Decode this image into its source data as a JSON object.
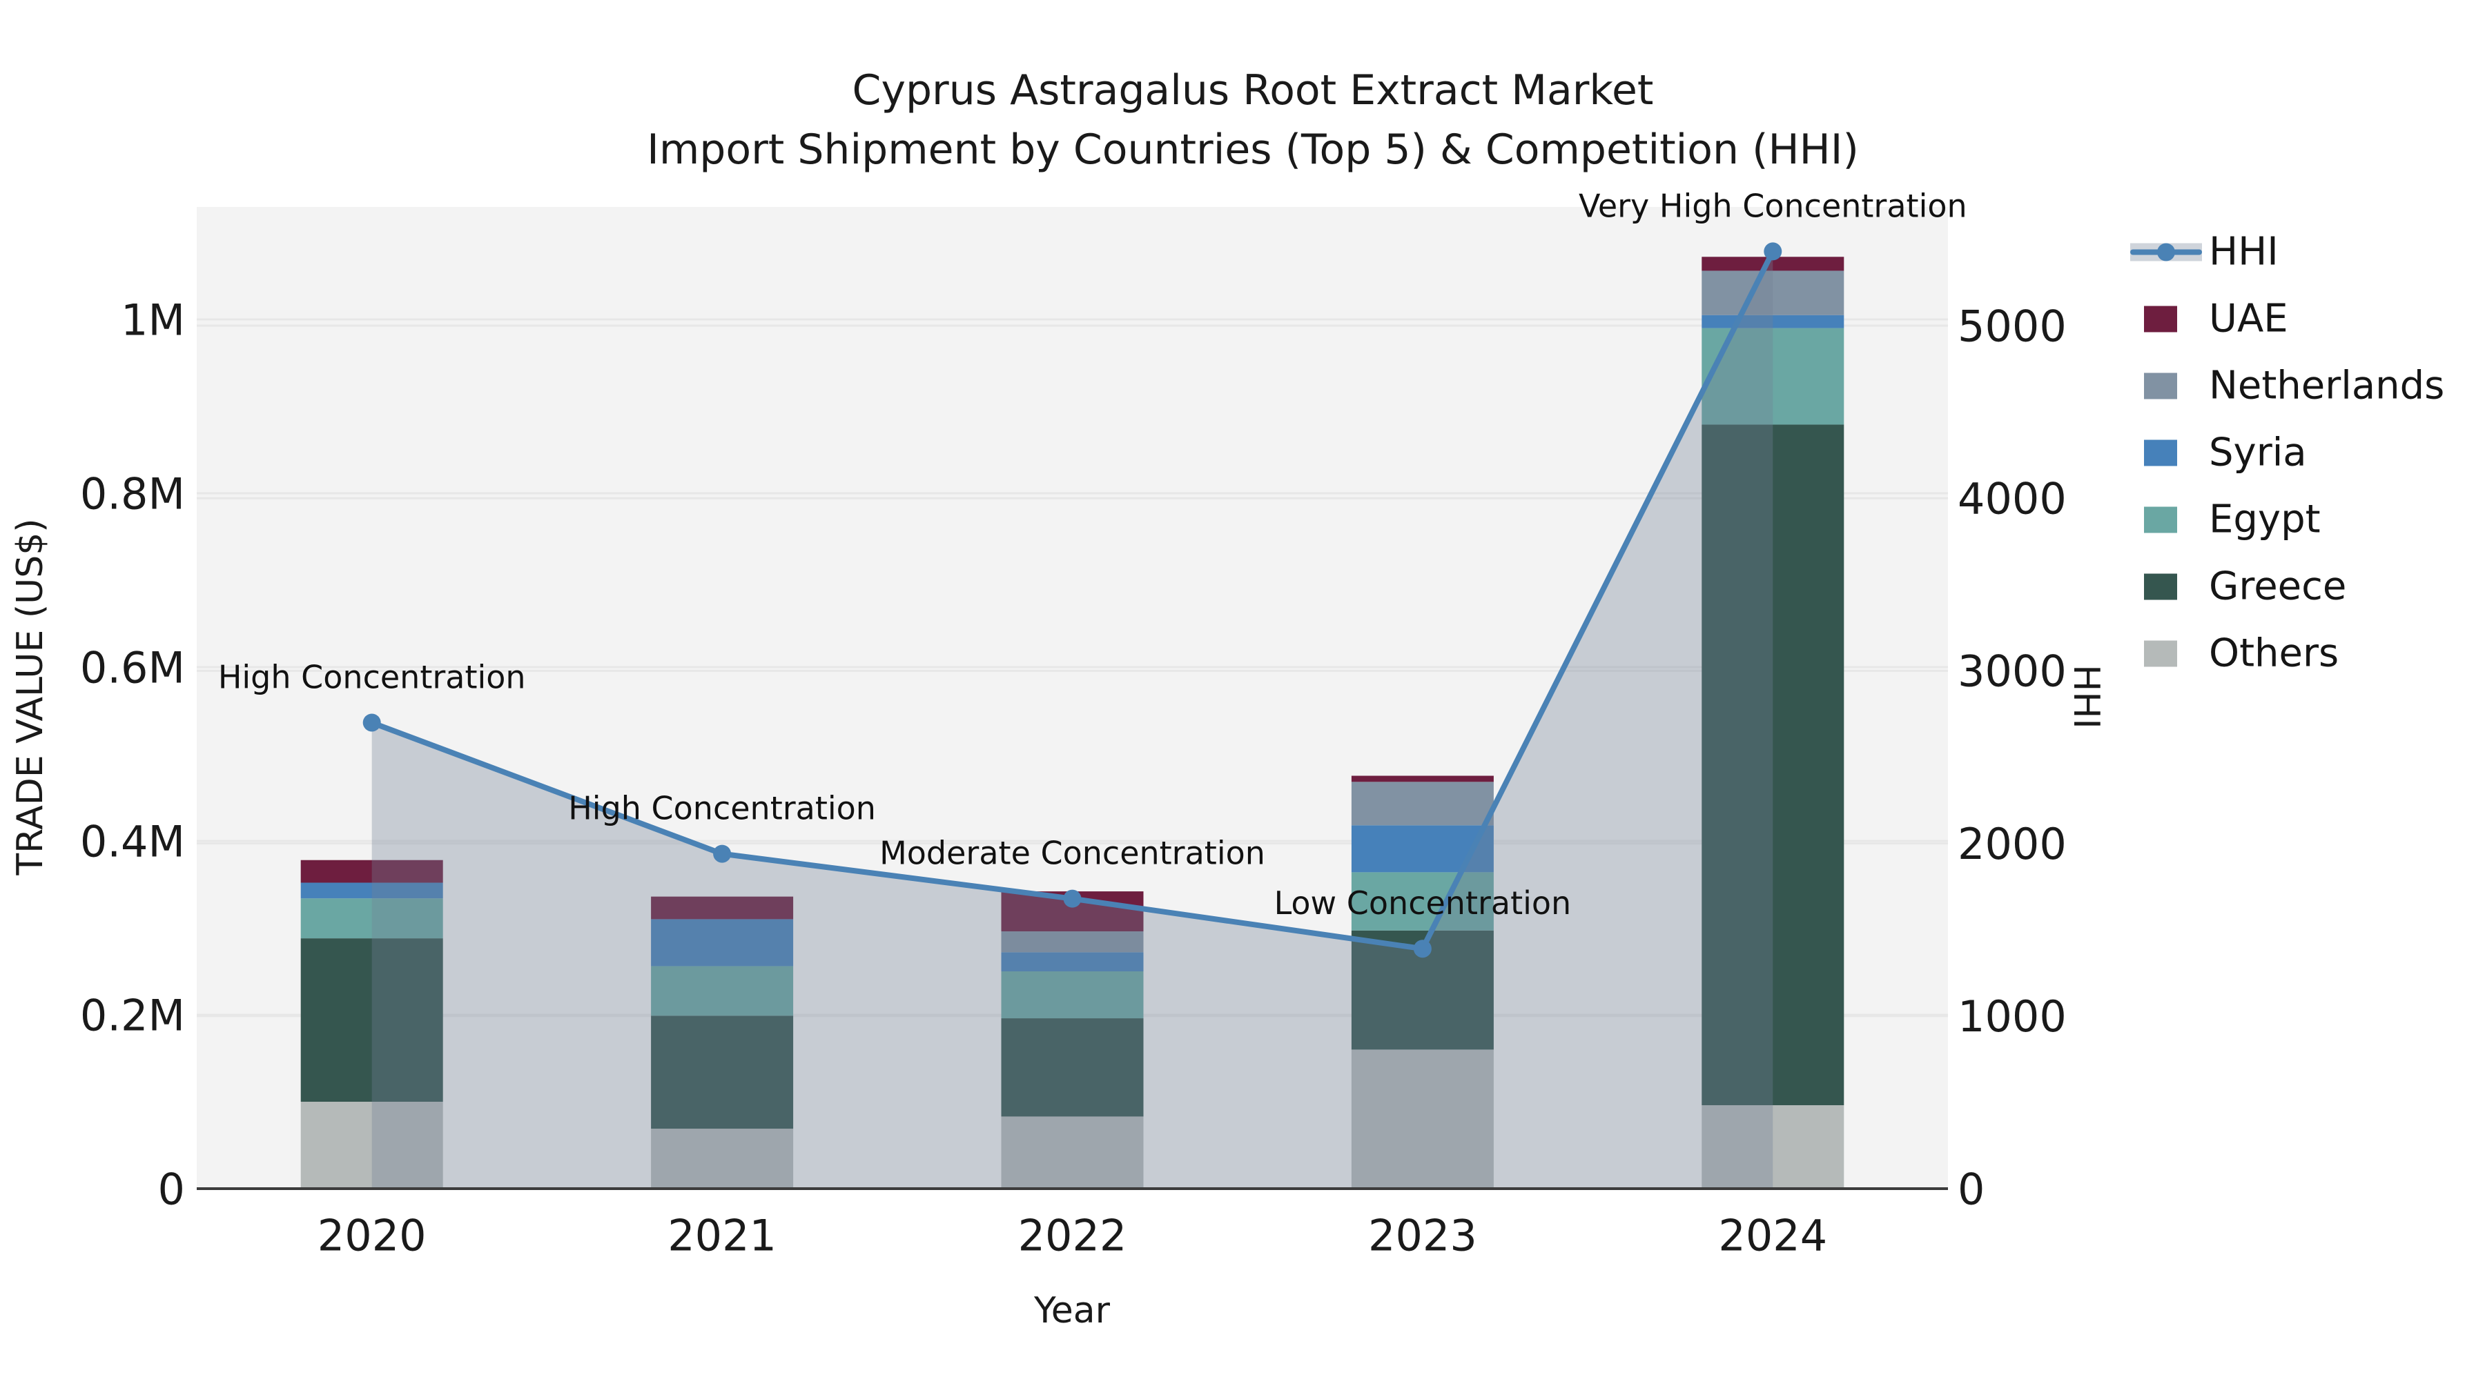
{
  "title": {
    "line1": "Cyprus Astragalus Root Extract Market",
    "line2": "Import Shipment by Countries (Top 5) & Competition (HHI)"
  },
  "axes": {
    "x": {
      "title": "Year",
      "ticks": [
        "2020",
        "2021",
        "2022",
        "2023",
        "2024"
      ]
    },
    "y_left": {
      "title": "TRADE VALUE (US$)",
      "ticks": [
        "0",
        "0.2M",
        "0.4M",
        "0.6M",
        "0.8M",
        "1M"
      ],
      "tick_values": [
        0,
        200000,
        400000,
        600000,
        800000,
        1000000
      ]
    },
    "y_right": {
      "title": "HHI",
      "ticks": [
        "0",
        "1000",
        "2000",
        "3000",
        "4000",
        "5000"
      ],
      "tick_values": [
        0,
        1000,
        2000,
        3000,
        4000,
        5000
      ]
    }
  },
  "legend": {
    "items": [
      {
        "label": "HHI",
        "type": "line",
        "color": "#4a82b5"
      },
      {
        "label": "UAE",
        "type": "swatch",
        "color": "#6e1e3f"
      },
      {
        "label": "Netherlands",
        "type": "swatch",
        "color": "#8192a3"
      },
      {
        "label": "Syria",
        "type": "swatch",
        "color": "#4681ba"
      },
      {
        "label": "Egypt",
        "type": "swatch",
        "color": "#6aa7a3"
      },
      {
        "label": "Greece",
        "type": "swatch",
        "color": "#35564f"
      },
      {
        "label": "Others",
        "type": "swatch",
        "color": "#b5bab9"
      }
    ]
  },
  "chart_data": {
    "type": "bar",
    "subtype": "stacked bars (trade value, left axis) with overlaid HHI line + shaded area (right axis)",
    "categories": [
      "2020",
      "2021",
      "2022",
      "2023",
      "2024"
    ],
    "bar_value_unit": "US$",
    "series": [
      {
        "name": "Others",
        "color": "#b5bab9",
        "values": [
          100000,
          69000,
          83000,
          160000,
          96000
        ]
      },
      {
        "name": "Greece",
        "color": "#35564f",
        "values": [
          188000,
          130000,
          113000,
          137000,
          783000
        ]
      },
      {
        "name": "Egypt",
        "color": "#6aa7a3",
        "values": [
          46000,
          57000,
          54000,
          67000,
          111000
        ]
      },
      {
        "name": "Syria",
        "color": "#4681ba",
        "values": [
          18000,
          54000,
          22000,
          54000,
          15000
        ]
      },
      {
        "name": "Netherlands",
        "color": "#8192a3",
        "values": [
          0,
          0,
          24000,
          50000,
          51000
        ]
      },
      {
        "name": "UAE",
        "color": "#6e1e3f",
        "values": [
          26000,
          26000,
          46000,
          7000,
          16000
        ]
      }
    ],
    "bar_totals": [
      378000,
      336000,
      342000,
      475000,
      1072000
    ],
    "line": {
      "name": "HHI",
      "color": "#4a82b5",
      "fill_color": "rgba(115,130,150,0.34)",
      "values": [
        2700,
        1940,
        1680,
        1390,
        5430
      ]
    },
    "annotations": [
      {
        "category": "2020",
        "text": "High Concentration"
      },
      {
        "category": "2021",
        "text": "High Concentration"
      },
      {
        "category": "2022",
        "text": "Moderate Concentration"
      },
      {
        "category": "2023",
        "text": "Low Concentration"
      },
      {
        "category": "2024",
        "text": "Very High Concentration"
      }
    ],
    "xlabel": "Year",
    "ylabel_left": "TRADE VALUE (US$)",
    "ylabel_right": "HHI",
    "ylim_left": [
      0,
      1130000
    ],
    "ylim_right": [
      0,
      5660
    ],
    "grid": true,
    "legend_position": "right"
  },
  "colors": {
    "figure_bg": "#ffffff",
    "plot_bg": "#f3f3f3",
    "gridline": "#e7e7e7",
    "axis_line": "#3c3c3c",
    "text": "#1a1a1a",
    "annotation_text": "#111111"
  }
}
